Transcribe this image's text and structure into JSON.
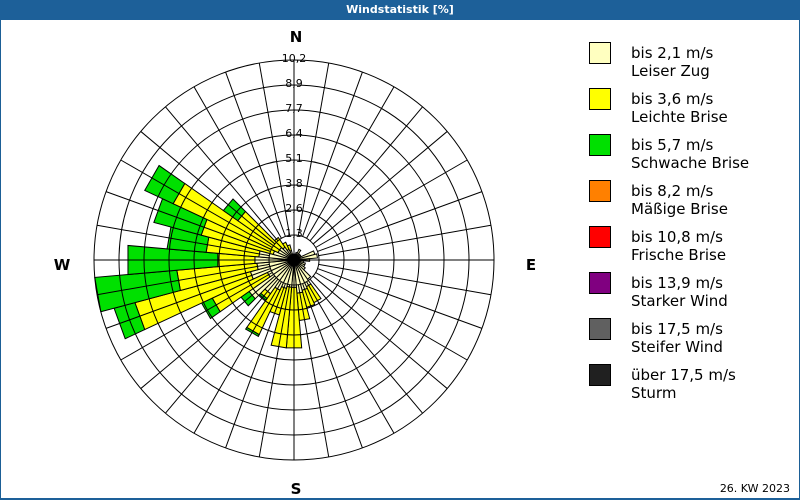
{
  "header": {
    "title": "Windstatistik [%]"
  },
  "footer": {
    "week_label": "26. KW 2023"
  },
  "compass": {
    "n": "N",
    "e": "E",
    "s": "S",
    "w": "W"
  },
  "legend": [
    {
      "range": "bis 2,1 m/s",
      "name": "Leiser Zug",
      "color": "#ffffc0"
    },
    {
      "range": "bis 3,6 m/s",
      "name": "Leichte Brise",
      "color": "#ffff00"
    },
    {
      "range": "bis 5,7 m/s",
      "name": "Schwache Brise",
      "color": "#00e000"
    },
    {
      "range": "bis 8,2 m/s",
      "name": "Mäßige Brise",
      "color": "#ff8000"
    },
    {
      "range": "bis 10,8 m/s",
      "name": "Frische Brise",
      "color": "#ff0000"
    },
    {
      "range": "bis 13,9 m/s",
      "name": "Starker Wind",
      "color": "#800080"
    },
    {
      "range": "bis 17,5 m/s",
      "name": "Steifer Wind",
      "color": "#606060"
    },
    {
      "range": "über 17,5 m/s",
      "name": "Sturm",
      "color": "#202020"
    }
  ],
  "chart_data": {
    "type": "wind-rose",
    "title": "Windstatistik [%]",
    "subtitle": "26. KW 2023",
    "unit": "%",
    "ring_labels": [
      "1,3",
      "2,6",
      "3,8",
      "5,1",
      "6,4",
      "7,7",
      "8,9",
      "10,2"
    ],
    "rmax": 10.2,
    "grid": true,
    "legend_position": "right",
    "sector_width_deg": 10,
    "directions_deg": [
      0,
      10,
      20,
      30,
      40,
      50,
      60,
      70,
      80,
      90,
      100,
      110,
      120,
      130,
      140,
      150,
      160,
      170,
      180,
      190,
      200,
      210,
      220,
      230,
      240,
      250,
      260,
      270,
      280,
      290,
      300,
      310,
      320,
      330,
      340,
      350
    ],
    "series": [
      {
        "name": "bis 2,1 m/s",
        "color": "#ffffc0",
        "values": [
          0.3,
          0.3,
          0.4,
          0.6,
          0.4,
          0.4,
          0.4,
          1.1,
          1.2,
          0.8,
          0.5,
          0.6,
          0.6,
          0.7,
          1.2,
          1.5,
          1.6,
          1.7,
          1.4,
          1.4,
          1.5,
          1.7,
          2.1,
          2.8,
          1.5,
          2.3,
          1.9,
          2.0,
          1.8,
          1.1,
          0.9,
          0.9,
          0.8,
          0.6,
          0.5,
          0.3
        ]
      },
      {
        "name": "bis 3,6 m/s",
        "color": "#ffff00",
        "values": [
          0,
          0,
          0,
          0,
          0,
          0,
          0,
          0,
          0,
          0,
          0,
          0,
          0,
          0,
          0,
          0.9,
          0.9,
          1.4,
          3.1,
          3.1,
          1.4,
          2.5,
          0.3,
          0,
          3.1,
          6.1,
          4.1,
          1.9,
          2.7,
          3.8,
          5.9,
          2.6,
          0.6,
          0.4,
          0.3,
          0
        ]
      },
      {
        "name": "bis 5,7 m/s",
        "color": "#00e000",
        "values": [
          0,
          0,
          0,
          0,
          0,
          0,
          0,
          0,
          0,
          0,
          0,
          0,
          0,
          0,
          0,
          0,
          0,
          0,
          0,
          0,
          0,
          0.1,
          0.1,
          0.5,
          0.6,
          1.1,
          4.2,
          4.6,
          2.0,
          2.5,
          1.6,
          0.9,
          0,
          0,
          0,
          0
        ]
      },
      {
        "name": "bis 8,2 m/s",
        "color": "#ff8000",
        "values": [
          0,
          0,
          0,
          0,
          0,
          0,
          0,
          0,
          0,
          0,
          0,
          0,
          0,
          0,
          0,
          0,
          0,
          0,
          0,
          0,
          0,
          0,
          0,
          0,
          0,
          0,
          0,
          0,
          0,
          0,
          0,
          0,
          0,
          0,
          0,
          0
        ]
      },
      {
        "name": "bis 10,8 m/s",
        "color": "#ff0000",
        "values": [
          0,
          0,
          0,
          0,
          0,
          0,
          0,
          0,
          0,
          0,
          0,
          0,
          0,
          0,
          0,
          0,
          0,
          0,
          0,
          0,
          0,
          0,
          0,
          0,
          0,
          0,
          0,
          0,
          0,
          0,
          0,
          0,
          0,
          0,
          0,
          0
        ]
      },
      {
        "name": "bis 13,9 m/s",
        "color": "#800080",
        "values": [
          0,
          0,
          0,
          0,
          0,
          0,
          0,
          0,
          0,
          0,
          0,
          0,
          0,
          0,
          0,
          0,
          0,
          0,
          0,
          0,
          0,
          0,
          0,
          0,
          0,
          0,
          0,
          0,
          0,
          0,
          0,
          0,
          0,
          0,
          0,
          0
        ]
      },
      {
        "name": "bis 17,5 m/s",
        "color": "#606060",
        "values": [
          0,
          0,
          0,
          0,
          0,
          0,
          0,
          0,
          0,
          0,
          0,
          0,
          0,
          0,
          0,
          0,
          0,
          0,
          0,
          0,
          0,
          0,
          0,
          0,
          0,
          0,
          0,
          0,
          0,
          0,
          0,
          0,
          0,
          0,
          0,
          0
        ]
      },
      {
        "name": "über 17,5 m/s",
        "color": "#202020",
        "values": [
          0,
          0,
          0,
          0,
          0,
          0,
          0,
          0,
          0,
          0,
          0,
          0,
          0,
          0,
          0,
          0,
          0,
          0,
          0,
          0,
          0,
          0,
          0,
          0,
          0,
          0,
          0,
          0,
          0,
          0,
          0,
          0,
          0,
          0,
          0,
          0
        ]
      }
    ]
  }
}
